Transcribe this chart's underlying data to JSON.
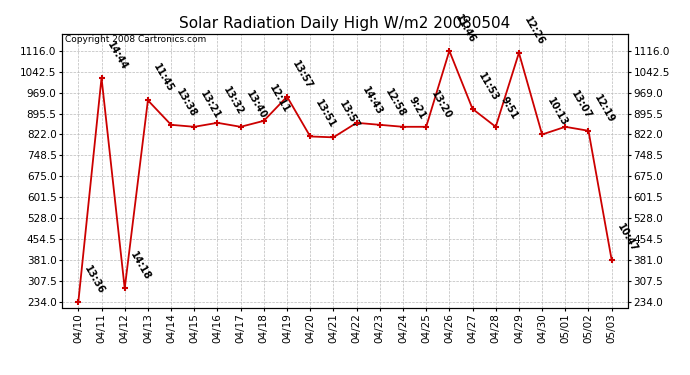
{
  "title": "Solar Radiation Daily High W/m2 20080504",
  "copyright": "Copyright 2008 Cartronics.com",
  "dates": [
    "04/10",
    "04/11",
    "04/12",
    "04/13",
    "04/14",
    "04/15",
    "04/16",
    "04/17",
    "04/18",
    "04/19",
    "04/20",
    "04/21",
    "04/22",
    "04/23",
    "04/24",
    "04/25",
    "04/26",
    "04/27",
    "04/28",
    "04/29",
    "04/30",
    "05/01",
    "05/02",
    "05/03"
  ],
  "values": [
    234,
    1021,
    281,
    942,
    856,
    849,
    863,
    849,
    870,
    955,
    815,
    812,
    863,
    856,
    849,
    849,
    1116,
    912,
    849,
    1109,
    822,
    849,
    835,
    381
  ],
  "times": [
    "13:36",
    "14:44",
    "14:18",
    "11:45",
    "13:38",
    "13:21",
    "13:32",
    "13:40",
    "12:11",
    "13:57",
    "13:51",
    "13:57",
    "14:43",
    "12:58",
    "9:21",
    "13:20",
    "11:46",
    "11:53",
    "9:51",
    "12:26",
    "10:13",
    "13:07",
    "12:19",
    "10:47"
  ],
  "ymin": 234.0,
  "ymax": 1116.0,
  "ytick_values": [
    234.0,
    307.5,
    381.0,
    454.5,
    528.0,
    601.5,
    675.0,
    748.5,
    822.0,
    895.5,
    969.0,
    1042.5,
    1116.0
  ],
  "line_color": "#cc0000",
  "marker_color": "#cc0000",
  "bg_color": "#ffffff",
  "grid_color": "#bbbbbb",
  "title_fontsize": 11,
  "annot_fontsize": 7,
  "tick_fontsize": 7.5,
  "copyright_fontsize": 6.5
}
